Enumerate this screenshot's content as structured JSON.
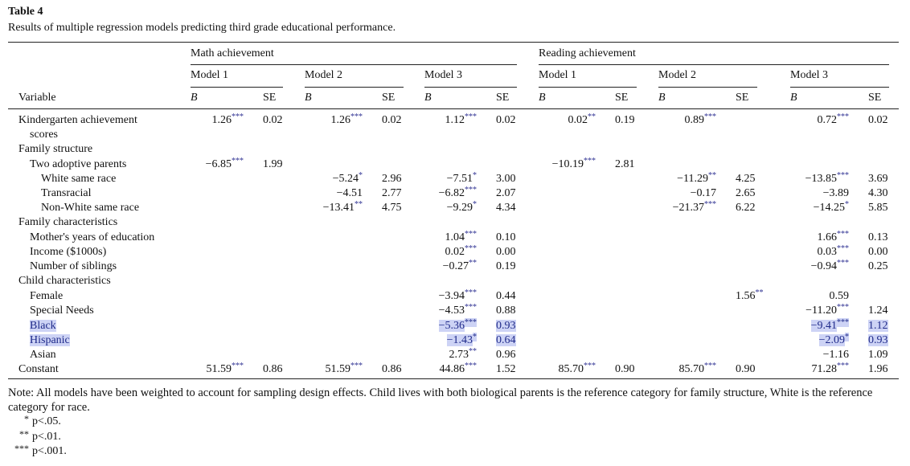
{
  "title": "Table 4",
  "caption": "Results of multiple regression models predicting third grade educational performance.",
  "table": {
    "groups": [
      "Math achievement",
      "Reading achievement"
    ],
    "models": [
      "Model 1",
      "Model 2",
      "Model 3",
      "Model 1",
      "Model 2",
      "Model 3"
    ],
    "header": [
      "Variable",
      "B",
      "SE",
      "B",
      "SE",
      "B",
      "SE",
      "B",
      "SE",
      "B",
      "SE",
      "B",
      "SE"
    ],
    "rows": [
      {
        "label": "Kindergarten achievement scores",
        "cells": [
          {
            "value": "1.26",
            "sig": "***"
          },
          "0.02",
          {
            "value": "1.26",
            "sig": "***"
          },
          "0.02",
          {
            "value": "1.12",
            "sig": "***"
          },
          "0.02",
          {
            "value": "0.02",
            "sig": "**"
          },
          "0.19",
          {
            "value": "0.89",
            "sig": "***"
          },
          null,
          {
            "value": "0.72",
            "sig": "***"
          },
          "0.02"
        ]
      },
      {
        "label": "Family structure"
      },
      {
        "label": "Two adoptive parents",
        "cells": [
          {
            "value": "−6.85",
            "sig": "***"
          },
          "1.99",
          null,
          null,
          null,
          null,
          {
            "value": "−10.19",
            "sig": "***"
          },
          "2.81",
          null,
          null,
          null,
          null
        ]
      },
      {
        "label": "White same race",
        "cells": [
          null,
          null,
          {
            "value": "−5.24",
            "sig": "*"
          },
          "2.96",
          {
            "value": "−7.51",
            "sig": "*"
          },
          "3.00",
          null,
          null,
          {
            "value": "−11.29",
            "sig": "**"
          },
          "4.25",
          {
            "value": "−13.85",
            "sig": "***"
          },
          "3.69"
        ]
      },
      {
        "label": "Transracial",
        "cells": [
          null,
          null,
          "−4.51",
          "2.77",
          {
            "value": "−6.82",
            "sig": "***"
          },
          "2.07",
          null,
          null,
          "−0.17",
          "2.65",
          "−3.89",
          "4.30"
        ]
      },
      {
        "label": "Non-White same race",
        "cells": [
          null,
          null,
          {
            "value": "−13.41",
            "sig": "**"
          },
          "4.75",
          {
            "value": "−9.29",
            "sig": "*"
          },
          "4.34",
          null,
          null,
          {
            "value": "−21.37",
            "sig": "***"
          },
          "6.22",
          {
            "value": "−14.25",
            "sig": "*"
          },
          "5.85"
        ]
      },
      {
        "label": "Family characteristics"
      },
      {
        "label": "Mother's years of education",
        "cells": [
          null,
          null,
          null,
          null,
          {
            "value": "1.04",
            "sig": "***"
          },
          "0.10",
          null,
          null,
          null,
          null,
          {
            "value": "1.66",
            "sig": "***"
          },
          "0.13"
        ]
      },
      {
        "label": "Income ($1000s)",
        "cells": [
          null,
          null,
          null,
          null,
          {
            "value": "0.02",
            "sig": "***"
          },
          "0.00",
          null,
          null,
          null,
          null,
          {
            "value": "0.03",
            "sig": "***"
          },
          "0.00"
        ]
      },
      {
        "label": "Number of siblings",
        "cells": [
          null,
          null,
          null,
          null,
          {
            "value": "−0.27",
            "sig": "**"
          },
          "0.19",
          null,
          null,
          null,
          null,
          {
            "value": "−0.94",
            "sig": "***"
          },
          "0.25"
        ]
      },
      {
        "label": "Child characteristics"
      },
      {
        "label": "Female",
        "cells": [
          null,
          null,
          null,
          null,
          {
            "value": "−3.94",
            "sig": "***"
          },
          "0.44",
          null,
          null,
          null,
          {
            "value": "1.56",
            "sig": "**"
          },
          "0.59",
          null
        ]
      },
      {
        "label": "Special Needs",
        "cells": [
          null,
          null,
          null,
          null,
          {
            "value": "−4.53",
            "sig": "***"
          },
          "0.88",
          null,
          null,
          null,
          null,
          {
            "value": "−11.20",
            "sig": "***"
          },
          "1.24"
        ]
      },
      {
        "label": "Black",
        "cells": [
          null,
          null,
          null,
          null,
          {
            "value": "−5.36",
            "sig": "***"
          },
          "0.93",
          null,
          null,
          null,
          null,
          {
            "value": "−9.41",
            "sig": "***"
          },
          "1.12"
        ]
      },
      {
        "label": "Hispanic",
        "cells": [
          null,
          null,
          null,
          null,
          {
            "value": "−1.43",
            "sig": "*"
          },
          "0.64",
          null,
          null,
          null,
          null,
          {
            "value": "−2.09",
            "sig": "*"
          },
          "0.93"
        ]
      },
      {
        "label": "Asian",
        "cells": [
          null,
          null,
          null,
          null,
          {
            "value": "2.73",
            "sig": "**"
          },
          "0.96",
          null,
          null,
          null,
          null,
          "−1.16",
          "1.09"
        ]
      },
      {
        "label": "Constant",
        "cells": [
          {
            "value": "51.59",
            "sig": "***"
          },
          "0.86",
          {
            "value": "51.59",
            "sig": "***"
          },
          "0.86",
          {
            "value": "44.86",
            "sig": "***"
          },
          "1.52",
          {
            "value": "85.70",
            "sig": "***"
          },
          "0.90",
          {
            "value": "85.70",
            "sig": "***"
          },
          "0.90",
          {
            "value": "71.28",
            "sig": "***"
          },
          "1.96"
        ]
      }
    ]
  },
  "note": "Note: All models have been weighted to account for sampling design effects. Child lives with both biological parents is the reference category for family structure, White is the reference category for race.",
  "footnotes": [
    {
      "mark": "*",
      "text": "p<.05."
    },
    {
      "mark": "**",
      "text": "p<.01."
    },
    {
      "mark": "***",
      "text": "p<.001."
    }
  ]
}
